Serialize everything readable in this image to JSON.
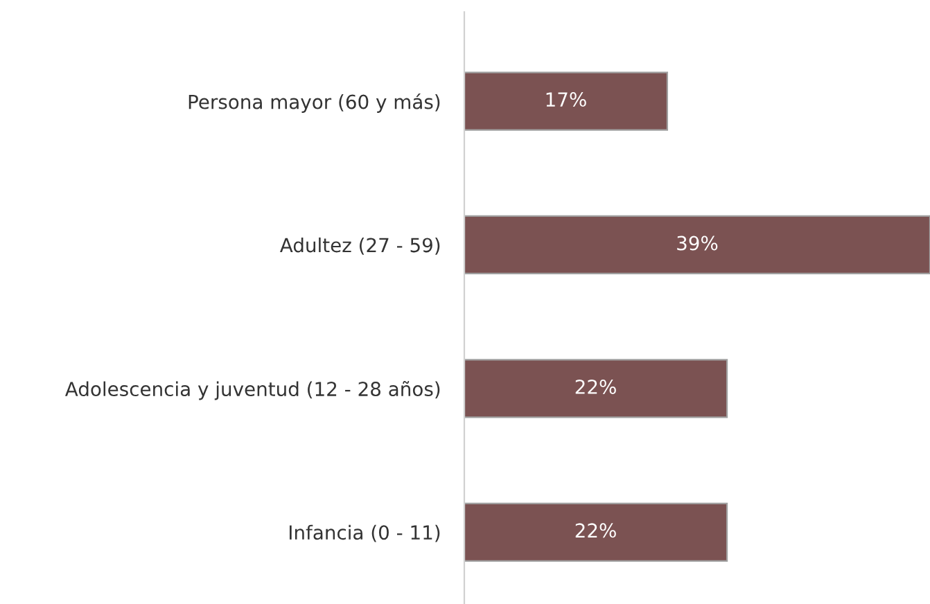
{
  "chart_data": {
    "type": "bar",
    "orientation": "horizontal",
    "categories": [
      "Persona mayor (60 y más)",
      "Adultez (27 - 59)",
      "Adolescencia y juventud (12 - 28 años)",
      "Infancia (0 - 11)"
    ],
    "values": [
      17,
      39,
      22,
      22
    ],
    "value_labels": [
      "17%",
      "39%",
      "22%",
      "22%"
    ],
    "color": "#7b5252",
    "grid": false,
    "legend": false
  }
}
